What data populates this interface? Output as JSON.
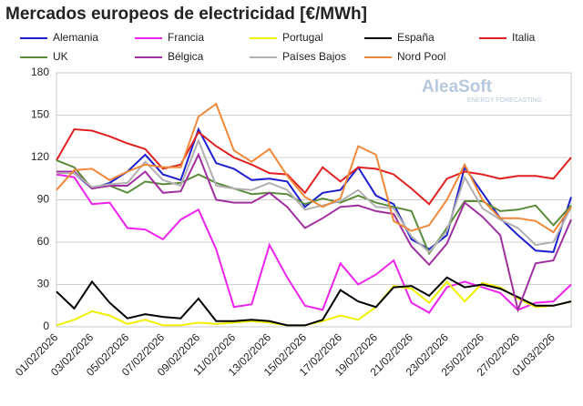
{
  "chart_data": {
    "type": "line",
    "title": "Mercados europeos de electricidad [€/MWh]",
    "watermark": "AleaSoft",
    "watermark_sub": "ENERGY FORECASTING",
    "categories": [
      "01/02/2026",
      null,
      "03/02/2026",
      null,
      "05/02/2026",
      null,
      "07/02/2026",
      null,
      "09/02/2026",
      null,
      "11/02/2026",
      null,
      "13/02/2026",
      null,
      "15/02/2026",
      null,
      "17/02/2026",
      null,
      "19/02/2026",
      null,
      "21/02/2026",
      null,
      "23/02/2026",
      null,
      "25/02/2026",
      null,
      "27/02/2026",
      null,
      "01/03/2026",
      null
    ],
    "series": [
      {
        "name": "Alemania",
        "color": "#1f1fd0",
        "values": [
          110,
          109,
          98,
          102,
          110,
          122,
          108,
          104,
          140,
          116,
          112,
          104,
          105,
          103,
          85,
          95,
          97,
          113,
          93,
          87,
          62,
          55,
          65,
          113,
          95,
          77,
          65,
          54,
          53,
          92
        ]
      },
      {
        "name": "Francia",
        "color": "#ee22ee",
        "values": [
          108,
          106,
          87,
          88,
          70,
          69,
          62,
          76,
          83,
          55,
          14,
          16,
          58,
          35,
          15,
          12,
          45,
          30,
          37,
          47,
          17,
          10,
          28,
          32,
          28,
          24,
          12,
          17,
          18,
          30
        ]
      },
      {
        "name": "Portugal",
        "color": "#f0f000",
        "values": [
          1,
          5,
          11,
          8,
          2,
          5,
          1,
          1,
          3,
          2,
          3,
          4,
          3,
          1,
          1,
          4,
          8,
          5,
          14,
          29,
          27,
          17,
          32,
          18,
          31,
          28,
          20,
          14,
          15,
          18
        ]
      },
      {
        "name": "España",
        "color": "#000000",
        "values": [
          25,
          13,
          32,
          17,
          6,
          9,
          7,
          6,
          20,
          4,
          4,
          5,
          4,
          1,
          1,
          5,
          26,
          18,
          14,
          28,
          29,
          22,
          35,
          28,
          30,
          27,
          21,
          15,
          15,
          18
        ]
      },
      {
        "name": "Italia",
        "color": "#e02020",
        "values": [
          118,
          140,
          139,
          135,
          130,
          126,
          112,
          115,
          138,
          128,
          120,
          115,
          109,
          108,
          95,
          113,
          103,
          113,
          112,
          108,
          98,
          87,
          105,
          110,
          108,
          105,
          107,
          107,
          105,
          120
        ]
      },
      {
        "name": "UK",
        "color": "#5a8a3a",
        "values": [
          118,
          113,
          98,
          100,
          95,
          103,
          101,
          102,
          108,
          102,
          98,
          94,
          95,
          94,
          87,
          91,
          88,
          93,
          88,
          85,
          82,
          52,
          70,
          89,
          89,
          82,
          83,
          86,
          72,
          86
        ]
      },
      {
        "name": "Bélgica",
        "color": "#a030a0",
        "values": [
          110,
          110,
          98,
          100,
          100,
          110,
          95,
          96,
          122,
          90,
          88,
          88,
          95,
          85,
          70,
          77,
          85,
          86,
          82,
          80,
          57,
          44,
          59,
          88,
          78,
          65,
          12,
          45,
          47,
          76
        ]
      },
      {
        "name": "Países Bajos",
        "color": "#b0b0b0",
        "values": [
          109,
          109,
          99,
          101,
          102,
          117,
          104,
          100,
          132,
          100,
          98,
          97,
          102,
          97,
          83,
          86,
          89,
          97,
          85,
          84,
          64,
          53,
          68,
          106,
          84,
          76,
          70,
          58,
          60,
          85
        ]
      },
      {
        "name": "Nord Pool",
        "color": "#f0883a",
        "values": [
          97,
          111,
          112,
          104,
          110,
          115,
          113,
          113,
          149,
          158,
          125,
          117,
          126,
          107,
          92,
          85,
          91,
          128,
          122,
          75,
          68,
          72,
          90,
          115,
          90,
          77,
          77,
          75,
          67,
          85
        ]
      }
    ],
    "ylim": [
      0,
      180
    ],
    "yticks": [
      0,
      30,
      60,
      90,
      120,
      150,
      180
    ],
    "grid": true
  }
}
